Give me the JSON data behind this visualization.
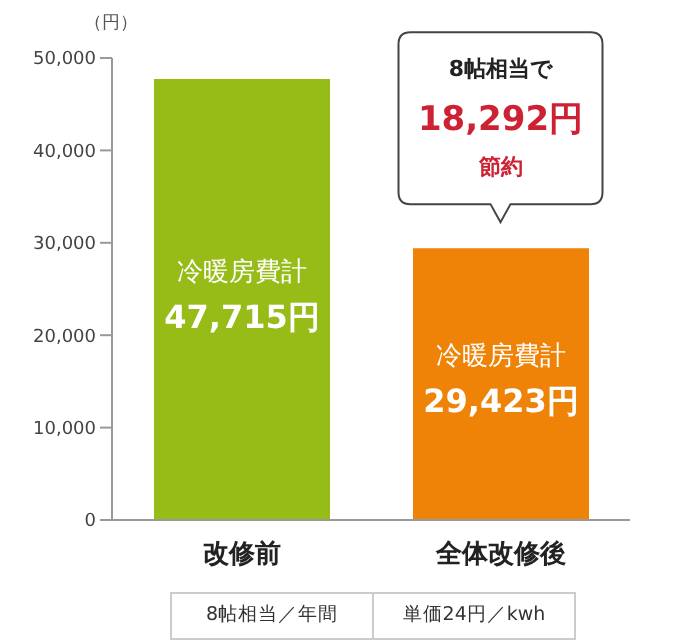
{
  "chart_data": {
    "type": "bar",
    "ylabel": "（円）",
    "categories": [
      "改修前",
      "全体改修後"
    ],
    "values": [
      47715,
      29423
    ],
    "colors": [
      "#97bb17",
      "#ee8308"
    ],
    "value_labels": [
      "冷暖房費計\n47,715円",
      "冷暖房費計\n29,423円"
    ],
    "ylim": [
      0,
      50000
    ],
    "yticks": [
      {
        "value": 0,
        "label": "0"
      },
      {
        "value": 10000,
        "label": "10,000"
      },
      {
        "value": 20000,
        "label": "20,000"
      },
      {
        "value": 30000,
        "label": "30,000"
      },
      {
        "value": 40000,
        "label": "40,000"
      },
      {
        "value": 50000,
        "label": "50,000"
      }
    ],
    "grid": false,
    "legend": false,
    "annotations": [
      "8帖相当で",
      "18,292円",
      "節約",
      "8帖相当／年間",
      "単価24円／kwh"
    ]
  }
}
